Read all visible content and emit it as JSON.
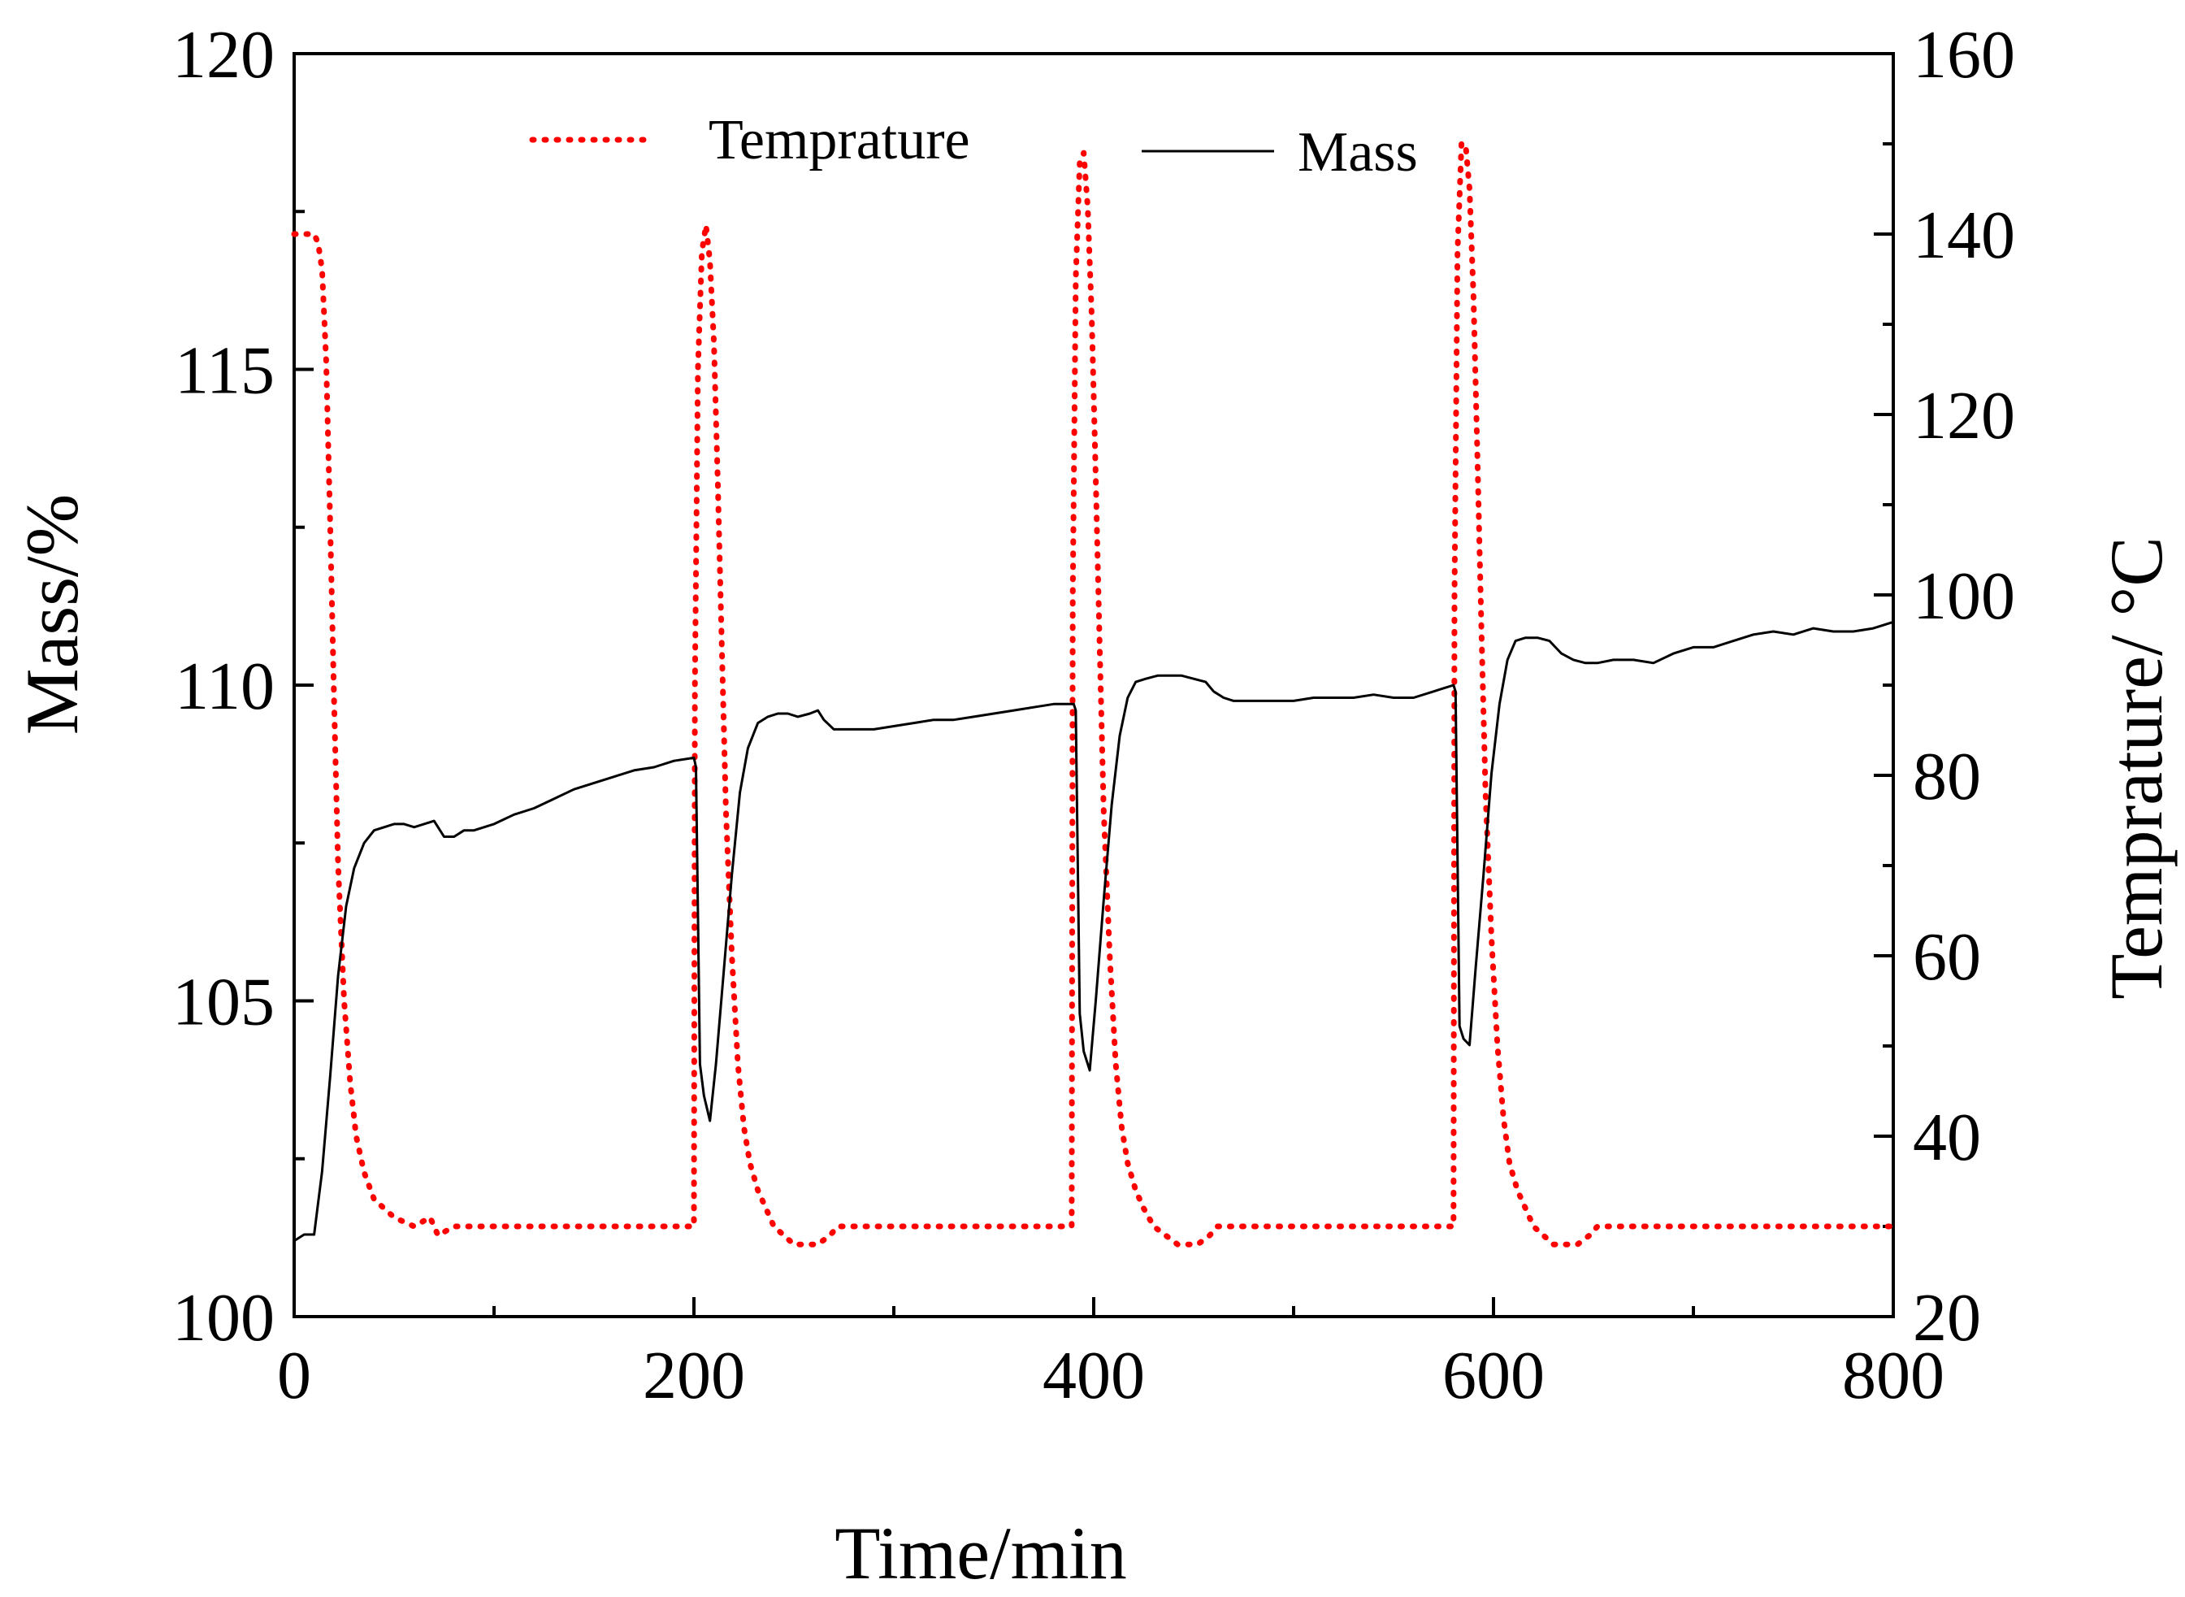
{
  "chart_data": {
    "type": "line",
    "title": "",
    "xlabel": "Time/min",
    "ylabel": "Mass/%",
    "ylabel_right": "Temprature/ °C",
    "xlim": [
      0,
      800
    ],
    "ylim": [
      100,
      120
    ],
    "ylim_right": [
      20,
      160
    ],
    "xticks": [
      0,
      200,
      400,
      600,
      800
    ],
    "yticks": [
      100,
      105,
      110,
      115,
      120
    ],
    "yticks_right": [
      20,
      40,
      60,
      80,
      100,
      120,
      140,
      160
    ],
    "grid": false,
    "legend": "top",
    "series": [
      {
        "name": "Temprature",
        "axis": "right",
        "color": "#ff0000",
        "style": "dotted",
        "x": [
          0,
          10,
          12,
          14,
          16,
          18,
          20,
          22,
          25,
          28,
          31,
          35,
          40,
          50,
          60,
          68,
          72,
          80,
          100,
          150,
          200,
          200.5,
          202,
          204,
          206,
          208,
          210,
          212,
          214,
          216,
          219,
          222,
          225,
          228,
          232,
          236,
          240,
          245,
          250,
          256,
          262,
          268,
          272,
          280,
          300,
          350,
          389,
          389.5,
          391,
          393,
          395,
          397,
          399,
          401,
          403,
          405,
          408,
          411,
          414,
          417,
          421,
          425,
          430,
          436,
          442,
          448,
          452,
          458,
          462,
          470,
          500,
          550,
          580,
          580.5,
          582,
          584,
          586,
          588,
          590,
          592,
          594,
          596,
          599,
          602,
          605,
          608,
          612,
          616,
          620,
          625,
          630,
          636,
          642,
          648,
          652,
          660,
          700,
          760,
          800
        ],
        "y": [
          140,
          140,
          139,
          136,
          126,
          108,
          88,
          70,
          55,
          46,
          40,
          36,
          33,
          31,
          30,
          31,
          29,
          30,
          30,
          30,
          30,
          90,
          125,
          138,
          141,
          137,
          128,
          112,
          94,
          76,
          60,
          48,
          41,
          37,
          34,
          32,
          30,
          29,
          28,
          28,
          28,
          29,
          30,
          30,
          30,
          30,
          30,
          100,
          135,
          148,
          149,
          143,
          131,
          113,
          94,
          76,
          60,
          48,
          41,
          37,
          34,
          32,
          30,
          29,
          28,
          28,
          28,
          29,
          30,
          30,
          30,
          30,
          30,
          100,
          138,
          150,
          150,
          145,
          133,
          115,
          96,
          78,
          62,
          50,
          42,
          37,
          34,
          32,
          30,
          29,
          28,
          28,
          28,
          29,
          30,
          30,
          30,
          30,
          30
        ]
      },
      {
        "name": "Mass",
        "axis": "left",
        "color": "#000000",
        "style": "solid",
        "x": [
          0,
          5,
          10,
          14,
          18,
          22,
          26,
          30,
          35,
          40,
          45,
          50,
          55,
          60,
          65,
          70,
          75,
          80,
          85,
          90,
          100,
          110,
          120,
          130,
          140,
          150,
          160,
          170,
          180,
          190,
          200,
          201,
          203,
          205,
          208,
          211,
          215,
          219,
          223,
          227,
          232,
          237,
          242,
          247,
          252,
          258,
          262,
          265,
          270,
          280,
          290,
          300,
          310,
          320,
          330,
          340,
          350,
          360,
          370,
          380,
          390,
          391,
          393,
          395,
          398,
          401,
          405,
          409,
          413,
          417,
          421,
          426,
          432,
          438,
          444,
          450,
          456,
          460,
          465,
          470,
          480,
          490,
          500,
          510,
          520,
          530,
          540,
          550,
          560,
          570,
          580,
          581,
          583,
          585,
          588,
          591,
          595,
          599,
          603,
          607,
          611,
          616,
          622,
          628,
          634,
          640,
          646,
          652,
          660,
          670,
          680,
          690,
          700,
          710,
          720,
          730,
          740,
          750,
          760,
          770,
          780,
          790,
          800
        ],
        "y": [
          101.2,
          101.3,
          101.3,
          102.3,
          103.8,
          105.4,
          106.5,
          107.1,
          107.5,
          107.7,
          107.75,
          107.8,
          107.8,
          107.75,
          107.8,
          107.85,
          107.6,
          107.6,
          107.7,
          107.7,
          107.8,
          107.95,
          108.05,
          108.2,
          108.35,
          108.45,
          108.55,
          108.65,
          108.7,
          108.8,
          108.85,
          108.7,
          104.0,
          103.5,
          103.1,
          104.0,
          105.5,
          107.0,
          108.3,
          109.0,
          109.4,
          109.5,
          109.55,
          109.55,
          109.5,
          109.55,
          109.6,
          109.45,
          109.3,
          109.3,
          109.3,
          109.35,
          109.4,
          109.45,
          109.45,
          109.5,
          109.55,
          109.6,
          109.65,
          109.7,
          109.7,
          109.6,
          104.8,
          104.2,
          103.9,
          105.0,
          106.6,
          108.1,
          109.2,
          109.8,
          110.05,
          110.1,
          110.15,
          110.15,
          110.15,
          110.1,
          110.05,
          109.9,
          109.8,
          109.75,
          109.75,
          109.75,
          109.75,
          109.8,
          109.8,
          109.8,
          109.85,
          109.8,
          109.8,
          109.9,
          110.0,
          109.9,
          104.6,
          104.4,
          104.3,
          105.5,
          107.0,
          108.6,
          109.7,
          110.4,
          110.7,
          110.75,
          110.75,
          110.7,
          110.5,
          110.4,
          110.35,
          110.35,
          110.4,
          110.4,
          110.35,
          110.5,
          110.6,
          110.6,
          110.7,
          110.8,
          110.85,
          110.8,
          110.9,
          110.85,
          110.85,
          110.9,
          111.0
        ]
      }
    ]
  }
}
